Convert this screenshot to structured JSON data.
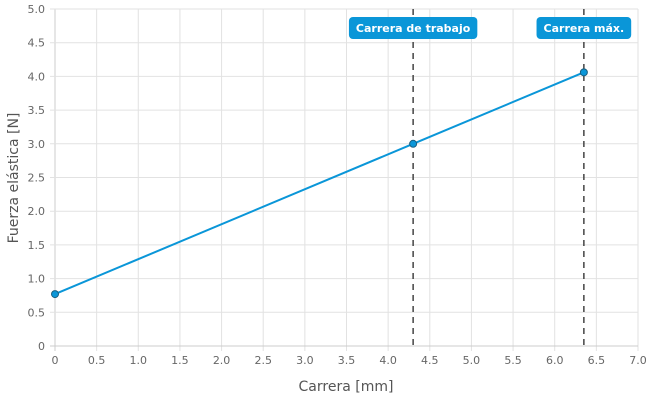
{
  "chart_data": {
    "type": "line",
    "xlabel": "Carrera [mm]",
    "ylabel": "Fuerza elástica [N]",
    "xlim": [
      0,
      7.0
    ],
    "ylim": [
      0,
      5.0
    ],
    "xticks": [
      "0",
      "0.5",
      "1.0",
      "1.5",
      "2.0",
      "2.5",
      "3.0",
      "3.5",
      "4.0",
      "4.5",
      "5.0",
      "5.5",
      "6.0",
      "6.5",
      "7.0"
    ],
    "yticks": [
      "0",
      "0.5",
      "1.0",
      "1.5",
      "2.0",
      "2.5",
      "3.0",
      "3.5",
      "4.0",
      "4.5",
      "5.0"
    ],
    "grid": true,
    "series": [
      {
        "x": [
          0,
          4.3,
          6.35
        ],
        "y": [
          0.77,
          3.0,
          4.06
        ],
        "color": "#0a96d8"
      }
    ],
    "annotations": [
      {
        "label": "Carrera de trabajo",
        "x": 4.3,
        "style": "dashed vertical line",
        "color": "#0a96d8"
      },
      {
        "label": "Carrera máx.",
        "x": 6.35,
        "style": "dashed vertical line",
        "color": "#0a96d8"
      }
    ]
  }
}
